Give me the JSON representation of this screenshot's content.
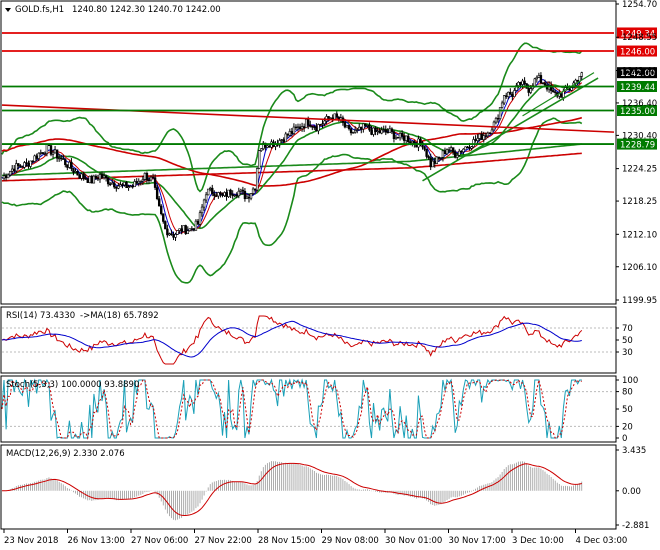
{
  "chart_data": [
    {
      "type": "candlestick",
      "title": "GOLD.fs,H1",
      "ohlc_header": "1240.80 1242.30 1240.70 1242.00",
      "x_ticks": [
        "23 Nov 2018",
        "26 Nov 13:00",
        "27 Nov 06:00",
        "27 Nov 22:00",
        "28 Nov 15:00",
        "29 Nov 08:00",
        "30 Nov 01:00",
        "30 Nov 17:00",
        "3 Dec 10:00",
        "4 Dec 03:00"
      ],
      "y_ticks": [
        1254.7,
        1248.55,
        1242.4,
        1236.4,
        1230.4,
        1224.25,
        1218.25,
        1212.1,
        1206.1,
        1199.95
      ],
      "ylim": [
        1199.95,
        1254.7
      ],
      "last_price": 1242.0,
      "levels": [
        {
          "price": 1249.34,
          "label": "1249.34",
          "color": "#e00000"
        },
        {
          "price": 1246.0,
          "label": "1246.00",
          "color": "#e00000"
        },
        {
          "price": 1239.44,
          "label": "1239.44",
          "color": "#007a00"
        },
        {
          "price": 1235.0,
          "label": "1235.00",
          "color": "#007a00"
        },
        {
          "price": 1228.79,
          "label": "1228.79",
          "color": "#007a00"
        }
      ],
      "close_path": [
        [
          0,
          1222.5
        ],
        [
          6,
          1224.5
        ],
        [
          12,
          1225
        ],
        [
          18,
          1227
        ],
        [
          22,
          1228
        ],
        [
          26,
          1227
        ],
        [
          32,
          1225
        ],
        [
          38,
          1223
        ],
        [
          44,
          1222
        ],
        [
          48,
          1223
        ],
        [
          52,
          1222
        ],
        [
          58,
          1221
        ],
        [
          64,
          1221
        ],
        [
          70,
          1223
        ],
        [
          74,
          1222
        ],
        [
          76,
          1218
        ],
        [
          80,
          1213
        ],
        [
          84,
          1212
        ],
        [
          88,
          1213
        ],
        [
          92,
          1213
        ],
        [
          96,
          1214
        ],
        [
          100,
          1220
        ],
        [
          104,
          1220
        ],
        [
          108,
          1219
        ],
        [
          112,
          1220
        ],
        [
          116,
          1220
        ],
        [
          120,
          1219
        ],
        [
          124,
          1221
        ],
        [
          126,
          1228
        ],
        [
          130,
          1229
        ],
        [
          134,
          1229
        ],
        [
          138,
          1230
        ],
        [
          142,
          1231
        ],
        [
          146,
          1232
        ],
        [
          150,
          1233
        ],
        [
          154,
          1232
        ],
        [
          158,
          1233
        ],
        [
          162,
          1234
        ],
        [
          166,
          1233
        ],
        [
          170,
          1231
        ],
        [
          174,
          1231
        ],
        [
          178,
          1232
        ],
        [
          182,
          1231
        ],
        [
          186,
          1231
        ],
        [
          190,
          1231
        ],
        [
          194,
          1230
        ],
        [
          198,
          1230
        ],
        [
          202,
          1229
        ],
        [
          206,
          1229
        ],
        [
          210,
          1225
        ],
        [
          214,
          1226
        ],
        [
          218,
          1228
        ],
        [
          222,
          1227
        ],
        [
          226,
          1228
        ],
        [
          230,
          1229
        ],
        [
          234,
          1230
        ],
        [
          238,
          1231
        ],
        [
          242,
          1233
        ],
        [
          246,
          1238
        ],
        [
          250,
          1238
        ],
        [
          254,
          1240
        ],
        [
          258,
          1239
        ],
        [
          262,
          1241
        ],
        [
          266,
          1240
        ],
        [
          270,
          1238
        ],
        [
          274,
          1238
        ],
        [
          278,
          1239
        ],
        [
          282,
          1241
        ],
        [
          284,
          1242
        ]
      ],
      "rsi": {
        "label": "RSI(14) 73.4330",
        "ma_label": "->MA(18) 65.7892",
        "ylim": [
          0,
          100
        ],
        "ticks": [
          70,
          50,
          30
        ]
      },
      "stoch": {
        "label": "Stoch(5,3,3) 100.0000 93.8890",
        "ylim": [
          0,
          100
        ],
        "ticks": [
          100,
          80,
          50,
          20,
          0
        ]
      },
      "macd": {
        "label": "MACD(12,26,9) 2.330 2.076",
        "ylim": [
          -2.881,
          3.435
        ],
        "ticks": [
          3.435,
          0.0,
          -2.881
        ]
      }
    }
  ]
}
